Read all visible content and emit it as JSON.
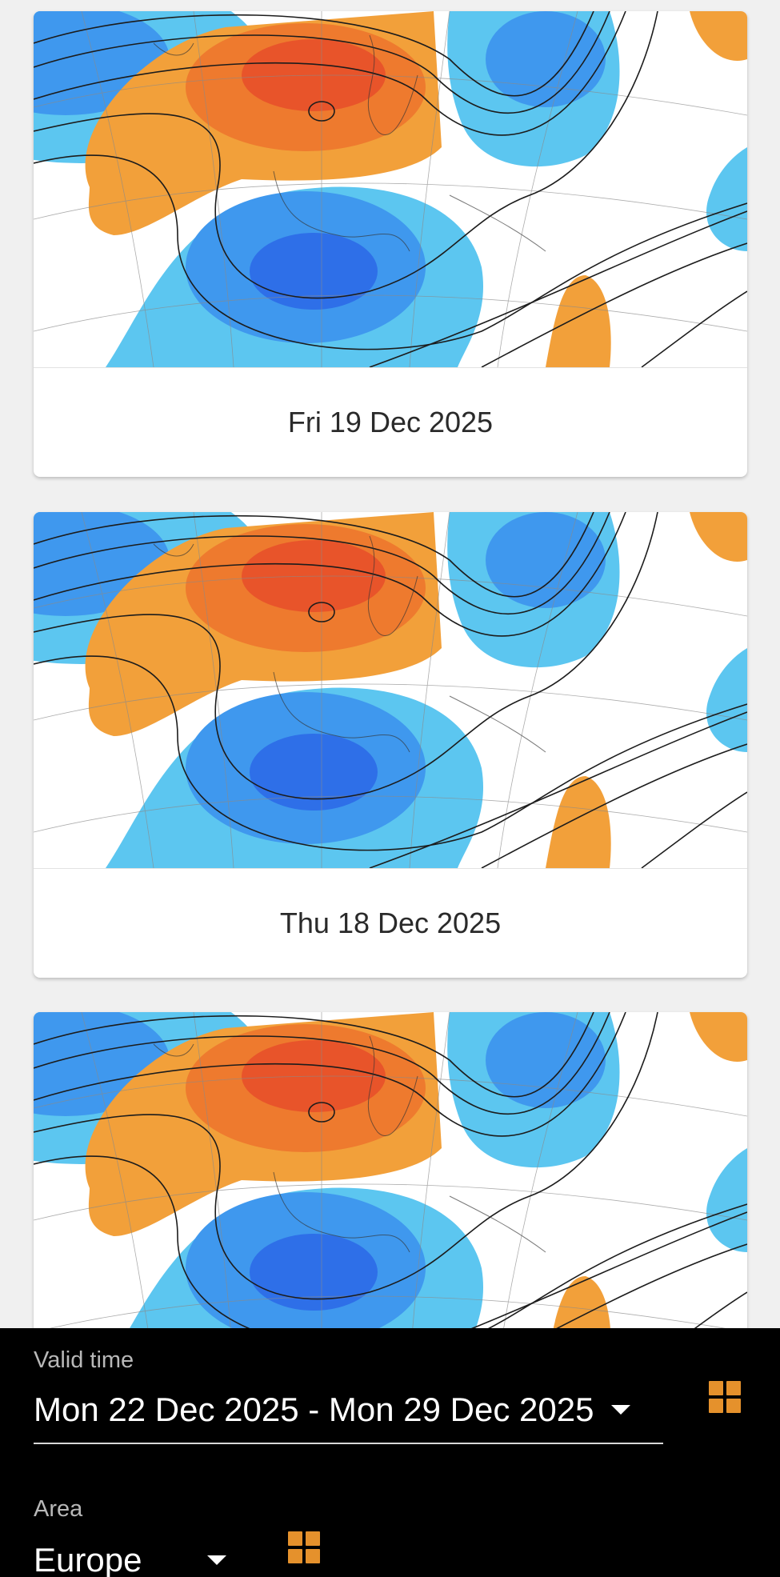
{
  "cards": [
    {
      "date_label": "Fri 19 Dec 2025"
    },
    {
      "date_label": "Thu 18 Dec 2025"
    },
    {
      "date_label": ""
    }
  ],
  "controls": {
    "valid_time": {
      "label": "Valid time",
      "value": "Mon 22 Dec 2025 - Mon 29 Dec 2025"
    },
    "area": {
      "label": "Area",
      "value": "Europe"
    },
    "accent_color": "#e5912c"
  },
  "icons": [
    "grid-view-icon",
    "chevron-down-icon"
  ]
}
